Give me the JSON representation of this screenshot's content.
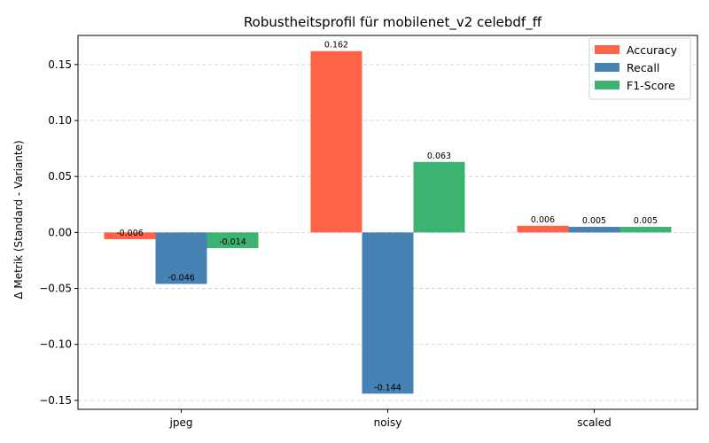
{
  "chart_data": {
    "type": "bar",
    "title": "Robustheitsprofil für mobilenet_v2 celebdf_ff",
    "xlabel": "",
    "ylabel": "Δ Metrik (Standard - Variante)",
    "categories": [
      "jpeg",
      "noisy",
      "scaled"
    ],
    "series": [
      {
        "name": "Accuracy",
        "color": "#FF6347",
        "values": [
          -0.006,
          0.162,
          0.006
        ],
        "labels": [
          "-0.006",
          "0.162",
          "0.006"
        ]
      },
      {
        "name": "Recall",
        "color": "#4682B4",
        "values": [
          -0.046,
          -0.144,
          0.005
        ],
        "labels": [
          "-0.046",
          "-0.144",
          "0.005"
        ]
      },
      {
        "name": "F1-Score",
        "color": "#3CB371",
        "values": [
          -0.014,
          0.063,
          0.005
        ],
        "labels": [
          "-0.014",
          "0.063",
          "0.005"
        ]
      }
    ],
    "ylim": [
      -0.158,
      0.176
    ],
    "yticks": [
      -0.15,
      -0.1,
      -0.05,
      0.0,
      0.05,
      0.1,
      0.15
    ],
    "ytick_labels": [
      "−0.15",
      "−0.10",
      "−0.05",
      "0.00",
      "0.05",
      "0.10",
      "0.15"
    ],
    "grid": "y-dashed",
    "legend_position": "top-right"
  }
}
